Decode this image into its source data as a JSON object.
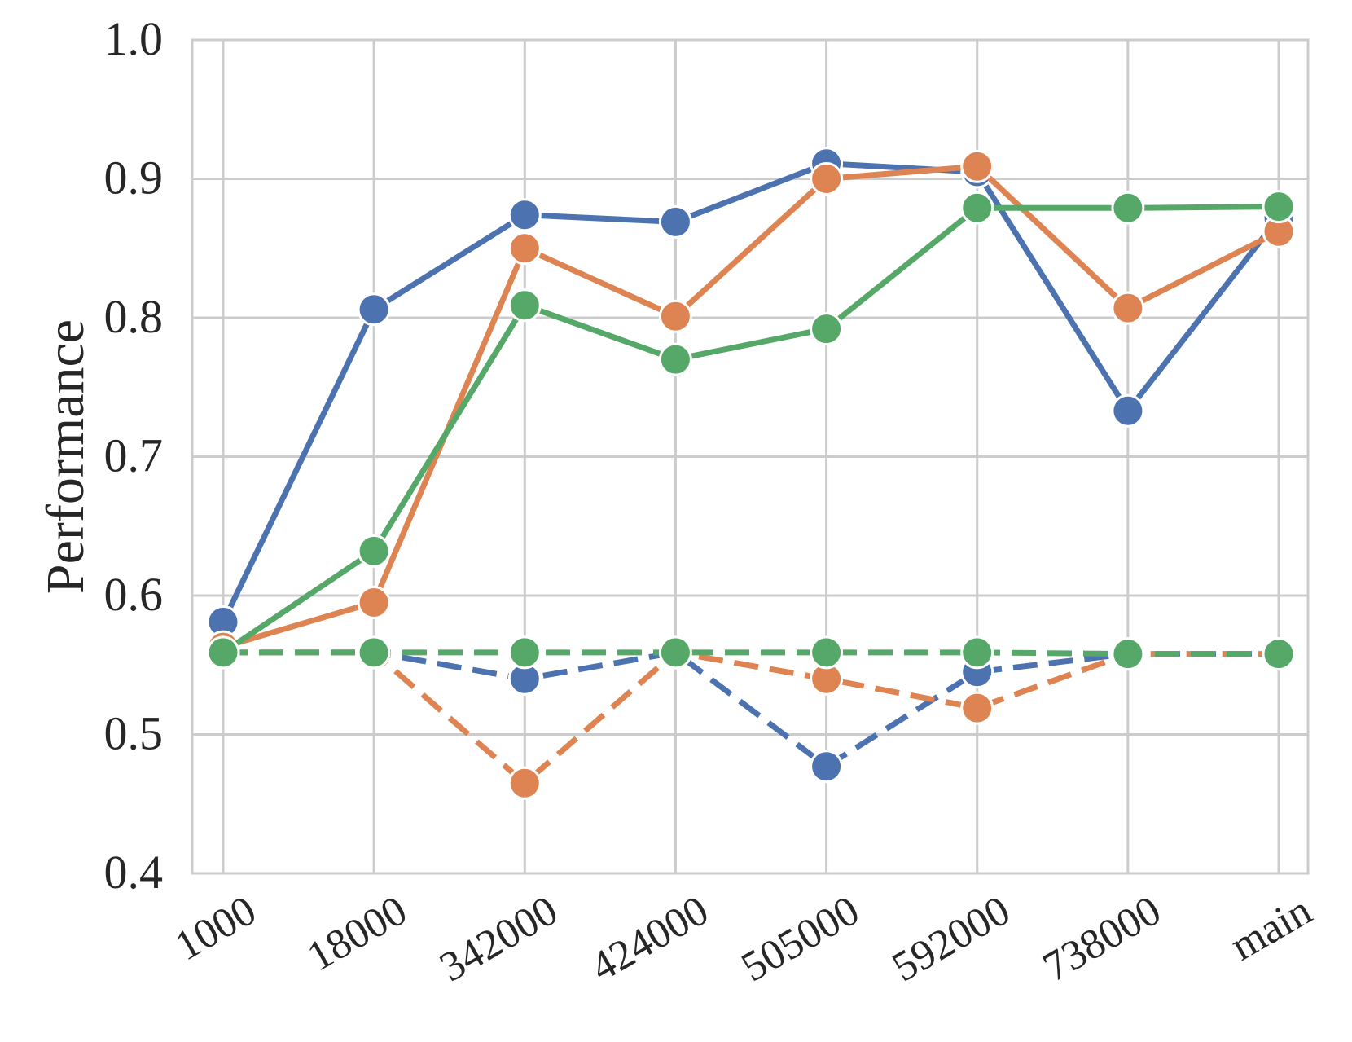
{
  "chart_data": {
    "type": "line",
    "categories": [
      "1000",
      "18000",
      "342000",
      "424000",
      "505000",
      "592000",
      "738000",
      "main"
    ],
    "ylabel": "Performance",
    "xlabel": "",
    "ylim": [
      0.4,
      1.0
    ],
    "yticks": [
      "0.4",
      "0.5",
      "0.6",
      "0.7",
      "0.8",
      "0.9",
      "1.0"
    ],
    "grid": true,
    "legend": "none",
    "series": [
      {
        "color": "#4c72b0",
        "linestyle": "solid",
        "values": [
          0.581,
          0.806,
          0.874,
          0.869,
          0.911,
          0.905,
          0.733,
          0.872
        ]
      },
      {
        "color": "#dd8452",
        "linestyle": "solid",
        "values": [
          0.563,
          0.595,
          0.85,
          0.801,
          0.9,
          0.909,
          0.807,
          0.862
        ]
      },
      {
        "color": "#55a868",
        "linestyle": "solid",
        "values": [
          0.559,
          0.632,
          0.809,
          0.77,
          0.792,
          0.879,
          0.879,
          0.88
        ]
      },
      {
        "color": "#4c72b0",
        "linestyle": "dashed",
        "values": [
          0.559,
          0.559,
          0.54,
          0.559,
          0.477,
          0.545,
          0.558,
          0.558
        ]
      },
      {
        "color": "#dd8452",
        "linestyle": "dashed",
        "values": [
          0.559,
          0.559,
          0.465,
          0.559,
          0.54,
          0.519,
          0.558,
          0.558
        ]
      },
      {
        "color": "#55a868",
        "linestyle": "dashed",
        "values": [
          0.559,
          0.559,
          0.559,
          0.559,
          0.559,
          0.559,
          0.558,
          0.558
        ]
      }
    ]
  }
}
